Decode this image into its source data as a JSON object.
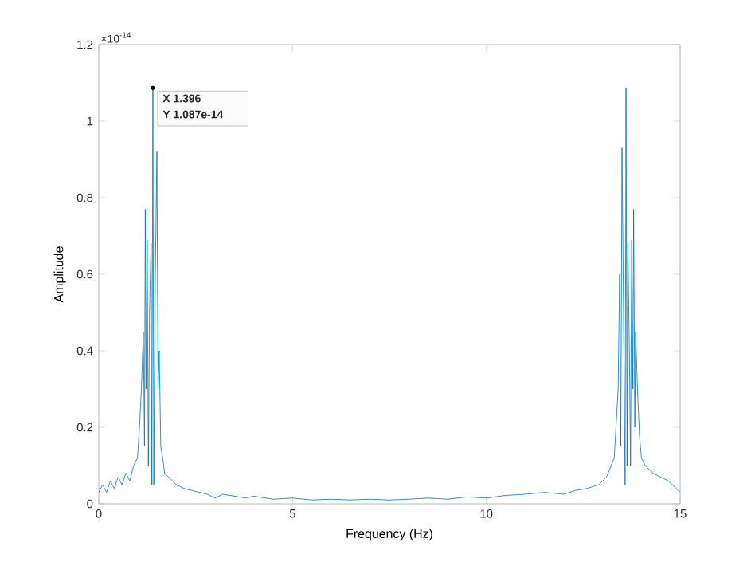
{
  "chart_data": {
    "type": "line",
    "xlabel": "Frequency (Hz)",
    "ylabel": "Amplitude",
    "annotations": [
      "×10$^{-14}$",
      {
        "text": "X 1.396",
        "x": 1.396,
        "y": 1.087
      },
      {
        "text": "Y 1.087e-14",
        "x": 1.396,
        "y": 1.087
      }
    ],
    "xlim": [
      0,
      15
    ],
    "ylim": [
      0,
      1.2
    ],
    "xticks": [
      0,
      5,
      10,
      15
    ],
    "yticks": [
      0,
      0.2,
      0.4,
      0.6,
      0.8,
      1,
      1.2
    ],
    "grid": false,
    "marker": "none",
    "line_style": "solid",
    "series": [
      {
        "color": "#0072bd",
        "x": [
          0,
          0.1,
          0.2,
          0.3,
          0.4,
          0.5,
          0.6,
          0.7,
          0.8,
          0.9,
          1.0,
          1.05,
          1.1,
          1.15,
          1.18,
          1.2,
          1.22,
          1.25,
          1.28,
          1.31,
          1.35,
          1.37,
          1.396,
          1.42,
          1.46,
          1.5,
          1.53,
          1.56,
          1.6,
          1.65,
          1.7,
          1.8,
          1.9,
          2.0,
          2.2,
          2.4,
          2.6,
          2.8,
          3.0,
          3.2,
          3.5,
          3.8,
          4.0,
          4.5,
          5.0,
          5.5,
          6,
          6.5,
          7,
          7.5,
          8,
          8.5,
          9,
          9.5,
          10,
          10.5,
          11,
          11.5,
          12,
          12.3,
          12.6,
          12.9,
          13.1,
          13.3,
          13.4,
          13.44,
          13.47,
          13.5,
          13.54,
          13.58,
          13.604,
          13.63,
          13.65,
          13.69,
          13.72,
          13.75,
          13.78,
          13.8,
          13.83,
          13.85,
          13.9,
          13.95,
          14.0,
          14.1,
          14.3,
          14.5,
          14.7,
          14.9,
          15
        ],
        "values": [
          0.03,
          0.05,
          0.03,
          0.06,
          0.04,
          0.07,
          0.05,
          0.08,
          0.06,
          0.1,
          0.12,
          0.2,
          0.3,
          0.45,
          0.15,
          0.77,
          0.3,
          0.69,
          0.1,
          0.5,
          0.68,
          0.05,
          1.087,
          0.05,
          0.6,
          0.92,
          0.3,
          0.4,
          0.15,
          0.12,
          0.08,
          0.07,
          0.06,
          0.05,
          0.04,
          0.035,
          0.03,
          0.025,
          0.015,
          0.025,
          0.02,
          0.015,
          0.02,
          0.012,
          0.015,
          0.01,
          0.012,
          0.01,
          0.012,
          0.01,
          0.012,
          0.015,
          0.012,
          0.018,
          0.015,
          0.022,
          0.025,
          0.03,
          0.025,
          0.035,
          0.04,
          0.05,
          0.07,
          0.12,
          0.3,
          0.6,
          0.15,
          0.93,
          0.5,
          0.05,
          1.087,
          0.1,
          0.68,
          0.4,
          0.1,
          0.69,
          0.3,
          0.77,
          0.2,
          0.45,
          0.3,
          0.18,
          0.12,
          0.1,
          0.08,
          0.07,
          0.06,
          0.04,
          0.03
        ]
      }
    ]
  }
}
